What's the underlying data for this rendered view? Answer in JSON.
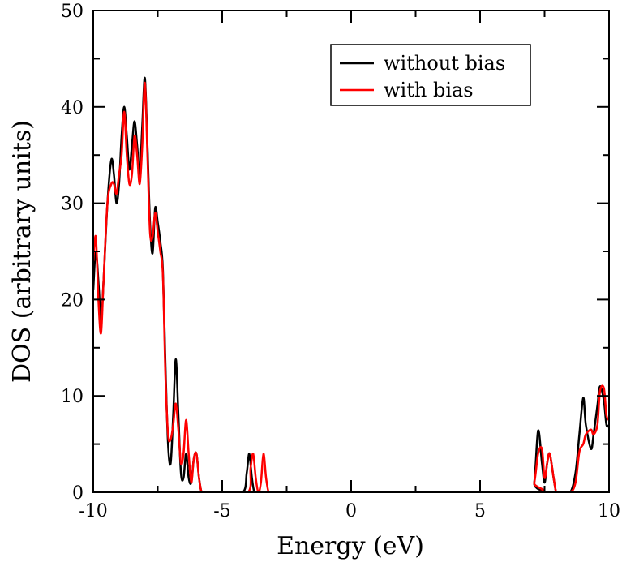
{
  "chart_data": {
    "type": "line",
    "title": "",
    "xlabel": "Energy (eV)",
    "ylabel": "DOS (arbitrary units)",
    "xlim": [
      -10,
      10
    ],
    "ylim": [
      0,
      50
    ],
    "xticks": [
      -10,
      -5,
      0,
      5,
      10
    ],
    "yticks": [
      0,
      10,
      20,
      30,
      40,
      50
    ],
    "grid": false,
    "legend_position": "top-right",
    "series": [
      {
        "name": "without bias",
        "color": "#000000",
        "x": [
          -10.0,
          -9.9,
          -9.78,
          -9.7,
          -9.6,
          -9.45,
          -9.3,
          -9.2,
          -9.1,
          -9.0,
          -8.9,
          -8.8,
          -8.7,
          -8.6,
          -8.5,
          -8.4,
          -8.3,
          -8.2,
          -8.1,
          -8.0,
          -7.9,
          -7.8,
          -7.7,
          -7.6,
          -7.5,
          -7.4,
          -7.3,
          -7.2,
          -7.1,
          -7.0,
          -6.9,
          -6.8,
          -6.7,
          -6.6,
          -6.5,
          -6.4,
          -6.3,
          -6.2,
          -6.1,
          -6.0,
          -5.9,
          -5.8,
          -5.7,
          -5.6,
          -5.5,
          -5.0,
          -4.2,
          -4.05,
          -3.95,
          -3.85,
          -3.75,
          -3.6,
          -3.5,
          -3.3,
          -3.2,
          0.0,
          6.9,
          7.1,
          7.25,
          7.4,
          7.5,
          7.6,
          7.7,
          7.85,
          7.95,
          8.05,
          8.15,
          8.5,
          8.7,
          8.85,
          9.0,
          9.1,
          9.3,
          9.4,
          9.55,
          9.65,
          9.8,
          9.9,
          10.0
        ],
        "y": [
          21.0,
          25.0,
          21.0,
          17.5,
          22.0,
          30.0,
          34.5,
          33.0,
          30.0,
          32.0,
          37.0,
          40.0,
          37.0,
          33.5,
          36.0,
          38.5,
          36.0,
          33.0,
          38.0,
          43.0,
          36.0,
          28.0,
          24.8,
          29.5,
          28.0,
          26.0,
          23.0,
          13.0,
          5.0,
          3.0,
          8.0,
          13.8,
          8.0,
          2.0,
          1.5,
          4.0,
          1.5,
          1.0,
          3.5,
          4.0,
          1.5,
          0.0,
          0.0,
          0.0,
          0.0,
          0.0,
          0.0,
          2.0,
          4.0,
          1.5,
          0.0,
          0.0,
          0.0,
          0.0,
          0.0,
          0.0,
          0.0,
          1.0,
          6.4,
          3.0,
          1.0,
          3.0,
          4.0,
          1.5,
          0.0,
          0.0,
          0.0,
          0.0,
          2.0,
          6.0,
          9.8,
          7.0,
          4.5,
          6.0,
          9.0,
          11.0,
          9.5,
          7.0,
          7.0
        ]
      },
      {
        "name": "with bias",
        "color": "#ff0000",
        "x": [
          -10.0,
          -9.9,
          -9.8,
          -9.7,
          -9.6,
          -9.45,
          -9.3,
          -9.2,
          -9.1,
          -9.0,
          -8.9,
          -8.8,
          -8.7,
          -8.6,
          -8.5,
          -8.4,
          -8.3,
          -8.2,
          -8.1,
          -8.0,
          -7.9,
          -7.8,
          -7.7,
          -7.6,
          -7.5,
          -7.4,
          -7.3,
          -7.2,
          -7.1,
          -7.0,
          -6.9,
          -6.8,
          -6.7,
          -6.6,
          -6.5,
          -6.4,
          -6.3,
          -6.2,
          -6.1,
          -6.0,
          -5.9,
          -5.8,
          -5.7,
          -5.6,
          -5.5,
          -5.0,
          -4.0,
          -3.9,
          -3.8,
          -3.7,
          -3.6,
          -3.5,
          -3.4,
          -3.3,
          -3.2,
          -3.1,
          -3.0,
          0.0,
          6.9,
          7.1,
          7.25,
          7.4,
          7.5,
          7.6,
          7.7,
          7.85,
          7.95,
          8.05,
          8.15,
          8.5,
          8.7,
          8.85,
          9.0,
          9.1,
          9.3,
          9.4,
          9.55,
          9.65,
          9.8,
          9.9,
          10.0
        ],
        "y": [
          24.0,
          26.5,
          20.0,
          16.5,
          22.0,
          30.0,
          32.0,
          32.0,
          31.0,
          33.0,
          35.0,
          39.5,
          35.0,
          32.0,
          33.0,
          37.0,
          35.0,
          32.0,
          36.0,
          42.5,
          35.0,
          27.0,
          26.5,
          29.0,
          27.0,
          25.0,
          22.5,
          12.0,
          6.0,
          5.5,
          7.0,
          9.2,
          6.5,
          3.0,
          4.0,
          7.5,
          4.0,
          1.0,
          3.5,
          4.0,
          1.5,
          0.0,
          0.0,
          0.0,
          0.0,
          0.0,
          0.0,
          2.5,
          4.0,
          1.5,
          0.0,
          1.0,
          4.0,
          1.5,
          0.0,
          0.0,
          0.0,
          0.0,
          0.0,
          1.0,
          4.0,
          4.5,
          1.5,
          3.0,
          4.0,
          1.5,
          0.0,
          0.0,
          0.0,
          0.0,
          1.0,
          4.2,
          5.0,
          6.0,
          6.5,
          6.0,
          7.0,
          10.5,
          10.8,
          8.0,
          7.5
        ]
      }
    ]
  }
}
